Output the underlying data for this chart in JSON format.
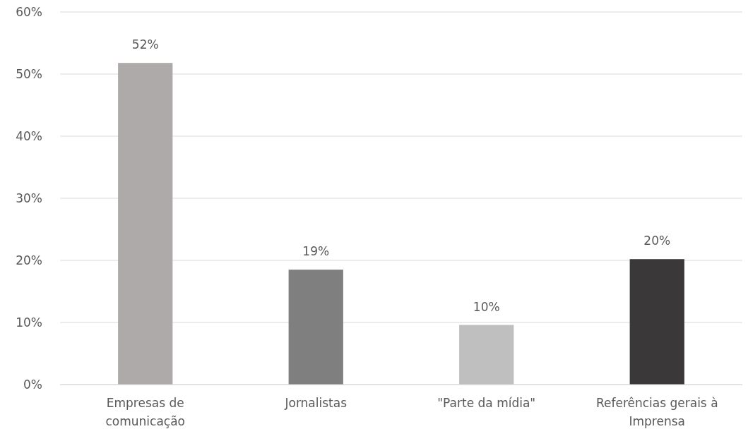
{
  "chart_data": {
    "type": "bar",
    "categories": [
      "Empresas de comunicação",
      "Jornalistas",
      "\"Parte da mídia\"",
      "Referências gerais à Imprensa"
    ],
    "values": [
      51.8,
      18.5,
      9.6,
      20.2
    ],
    "value_labels": [
      "52%",
      "19%",
      "10%",
      "20%"
    ],
    "colors": [
      "#aeaaaa",
      "#7f7f7f",
      "#bfbfbf",
      "#3a3838"
    ],
    "ylim": [
      0,
      60
    ],
    "yticks": [
      {
        "value": 0,
        "label": "0%"
      },
      {
        "value": 10,
        "label": "10%"
      },
      {
        "value": 20,
        "label": "20%"
      },
      {
        "value": 30,
        "label": "30%"
      },
      {
        "value": 40,
        "label": "40%"
      },
      {
        "value": 50,
        "label": "50%"
      },
      {
        "value": 60,
        "label": "60%"
      }
    ],
    "grid": "y"
  }
}
